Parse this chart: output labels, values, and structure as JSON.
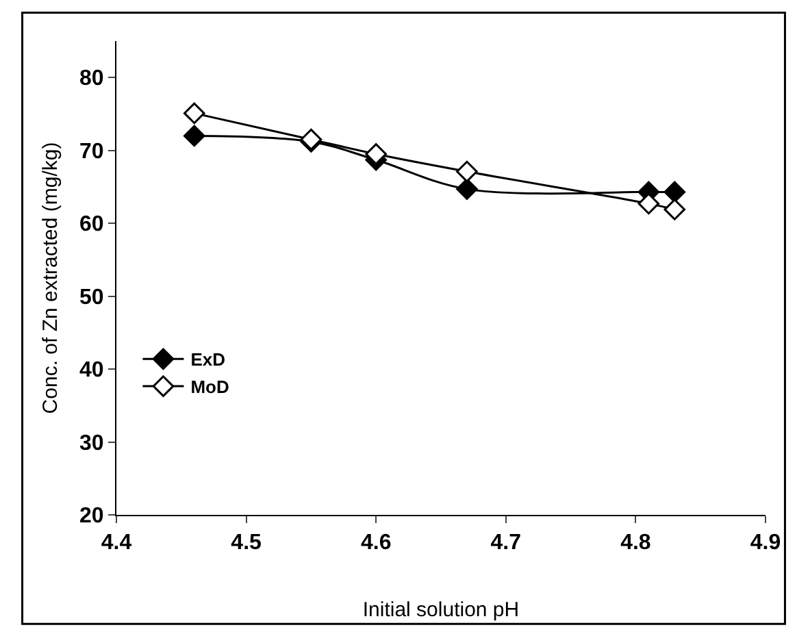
{
  "chart_data": {
    "type": "line",
    "xlabel": "Initial solution pH",
    "ylabel": "Conc. of Zn extracted (mg/kg)",
    "x": [
      4.46,
      4.55,
      4.6,
      4.67,
      4.81,
      4.83
    ],
    "series": [
      {
        "name": "ExD",
        "color": "#000000",
        "values": [
          72.0,
          71.2,
          68.7,
          64.7,
          64.3,
          64.3
        ]
      },
      {
        "name": "MoD",
        "color": "#000000",
        "values": [
          75.1,
          71.5,
          69.5,
          67.1,
          62.7,
          61.9
        ]
      }
    ],
    "xlim": [
      4.4,
      4.9
    ],
    "xticks": [
      4.4,
      4.5,
      4.6,
      4.7,
      4.8,
      4.9
    ],
    "ylim": [
      20,
      85
    ],
    "yticks": [
      20,
      30,
      40,
      50,
      60,
      70,
      80
    ],
    "grid": false,
    "legend": "left",
    "marker": "diamond",
    "line_style": "solid"
  }
}
